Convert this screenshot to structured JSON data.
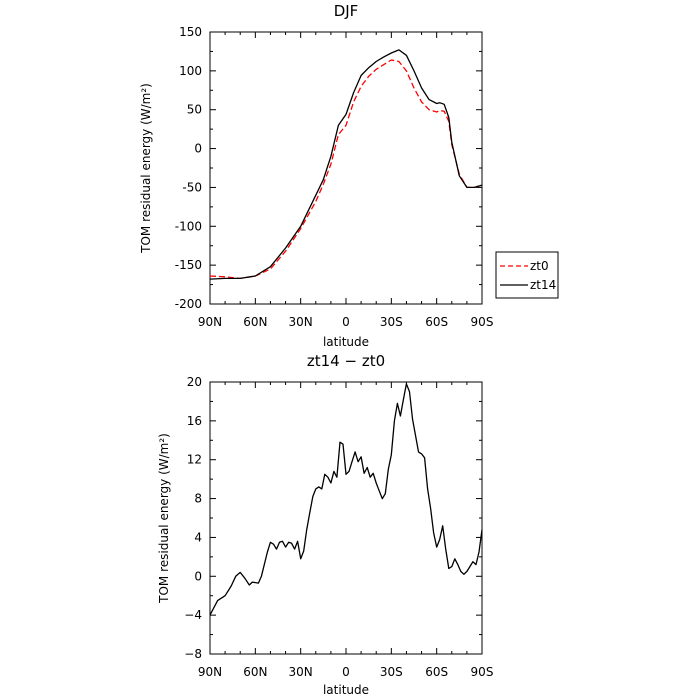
{
  "chart_data": [
    {
      "type": "line",
      "title": "DJF",
      "xlabel": "latitude",
      "ylabel": "TOM residual energy (W/m²)",
      "xlim": [
        90,
        -90
      ],
      "ylim": [
        -200,
        150
      ],
      "x_ticks": [
        90,
        60,
        30,
        0,
        -30,
        -60,
        -90
      ],
      "x_tick_labels": [
        "90N",
        "60N",
        "30N",
        "0",
        "30S",
        "60S",
        "90S"
      ],
      "y_ticks": [
        -200,
        -150,
        -100,
        -50,
        0,
        50,
        100,
        150
      ],
      "y_tick_labels": [
        "-200",
        "-150",
        "-100",
        "-50",
        "0",
        "50",
        "100",
        "150"
      ],
      "legend": "outside-right",
      "series": [
        {
          "name": "zt0",
          "color": "#ff0000",
          "dash": true,
          "x": [
            90,
            80,
            70,
            60,
            50,
            40,
            30,
            20,
            15,
            10,
            5,
            0,
            -5,
            -10,
            -15,
            -20,
            -25,
            -30,
            -35,
            -40,
            -45,
            -50,
            -55,
            -60,
            -62,
            -65,
            -68,
            -70,
            -75,
            -80,
            -85,
            -90
          ],
          "y": [
            -164,
            -165,
            -167,
            -164,
            -155,
            -132,
            -103,
            -68,
            -46,
            -20,
            18,
            30,
            60,
            80,
            93,
            102,
            108,
            114,
            112,
            100,
            78,
            60,
            50,
            47,
            49,
            48,
            35,
            5,
            -33,
            -50,
            -50,
            -47
          ]
        },
        {
          "name": "zt14",
          "color": "#000000",
          "dash": false,
          "x": [
            90,
            80,
            70,
            60,
            50,
            40,
            30,
            20,
            15,
            10,
            5,
            0,
            -5,
            -10,
            -15,
            -20,
            -25,
            -30,
            -35,
            -40,
            -45,
            -50,
            -55,
            -60,
            -62,
            -65,
            -68,
            -70,
            -75,
            -80,
            -85,
            -90
          ],
          "y": [
            -168,
            -167,
            -167,
            -164,
            -152,
            -128,
            -100,
            -60,
            -40,
            -10,
            30,
            44,
            72,
            94,
            104,
            112,
            118,
            123,
            127,
            120,
            100,
            78,
            63,
            58,
            59,
            57,
            40,
            8,
            -35,
            -50,
            -50,
            -47
          ]
        }
      ]
    },
    {
      "type": "line",
      "title": "zt14 − zt0",
      "xlabel": "latitude",
      "ylabel": "TOM residual energy (W/m²)",
      "xlim": [
        90,
        -90
      ],
      "ylim": [
        -8,
        20
      ],
      "x_ticks": [
        90,
        60,
        30,
        0,
        -30,
        -60,
        -90
      ],
      "x_tick_labels": [
        "90N",
        "60N",
        "30N",
        "0",
        "30S",
        "60S",
        "90S"
      ],
      "y_ticks": [
        -8,
        -4,
        0,
        4,
        8,
        12,
        16,
        20
      ],
      "y_tick_labels": [
        "−8",
        "−4",
        "0",
        "4",
        "8",
        "12",
        "16",
        "20"
      ],
      "series": [
        {
          "color": "#000000",
          "x": [
            90,
            85,
            80,
            76,
            73,
            70,
            67,
            64,
            62,
            58,
            56,
            52,
            50,
            48,
            46,
            44,
            42,
            40,
            38,
            36,
            34,
            32,
            30,
            28,
            26,
            24,
            22,
            20,
            18,
            16,
            14,
            12,
            10,
            8,
            6,
            4,
            2,
            0,
            -2,
            -4,
            -6,
            -8,
            -10,
            -12,
            -14,
            -16,
            -18,
            -20,
            -22,
            -24,
            -26,
            -28,
            -30,
            -32,
            -34,
            -36,
            -38,
            -40,
            -42,
            -44,
            -46,
            -48,
            -50,
            -52,
            -54,
            -56,
            -58,
            -60,
            -62,
            -64,
            -66,
            -68,
            -70,
            -72,
            -74,
            -76,
            -78,
            -80,
            -82,
            -84,
            -86,
            -88,
            -90
          ],
          "y": [
            -4,
            -2.5,
            -2,
            -1,
            0,
            0.4,
            -0.2,
            -0.9,
            -0.6,
            -0.7,
            0,
            2.5,
            3.5,
            3.3,
            2.8,
            3.5,
            3.6,
            3,
            3.5,
            3.4,
            2.8,
            3.6,
            1.8,
            2.6,
            4.8,
            6.5,
            8.2,
            9,
            9.2,
            9,
            10.5,
            10.2,
            9.6,
            10.8,
            10.2,
            13.8,
            13.6,
            10.5,
            10.8,
            11.8,
            12.8,
            11.8,
            12.3,
            10.6,
            11.2,
            10.2,
            10.6,
            9.6,
            8.8,
            8,
            8.5,
            11,
            12.5,
            16,
            17.8,
            16.5,
            18.2,
            19.8,
            19,
            16.2,
            14.5,
            12.8,
            12.6,
            12.2,
            9,
            7,
            4.5,
            3,
            3.8,
            5.2,
            2.8,
            0.8,
            1,
            1.8,
            1.2,
            0.5,
            0.2,
            0.5,
            1,
            1.5,
            1.2,
            2.5,
            4.8
          ]
        }
      ]
    }
  ]
}
